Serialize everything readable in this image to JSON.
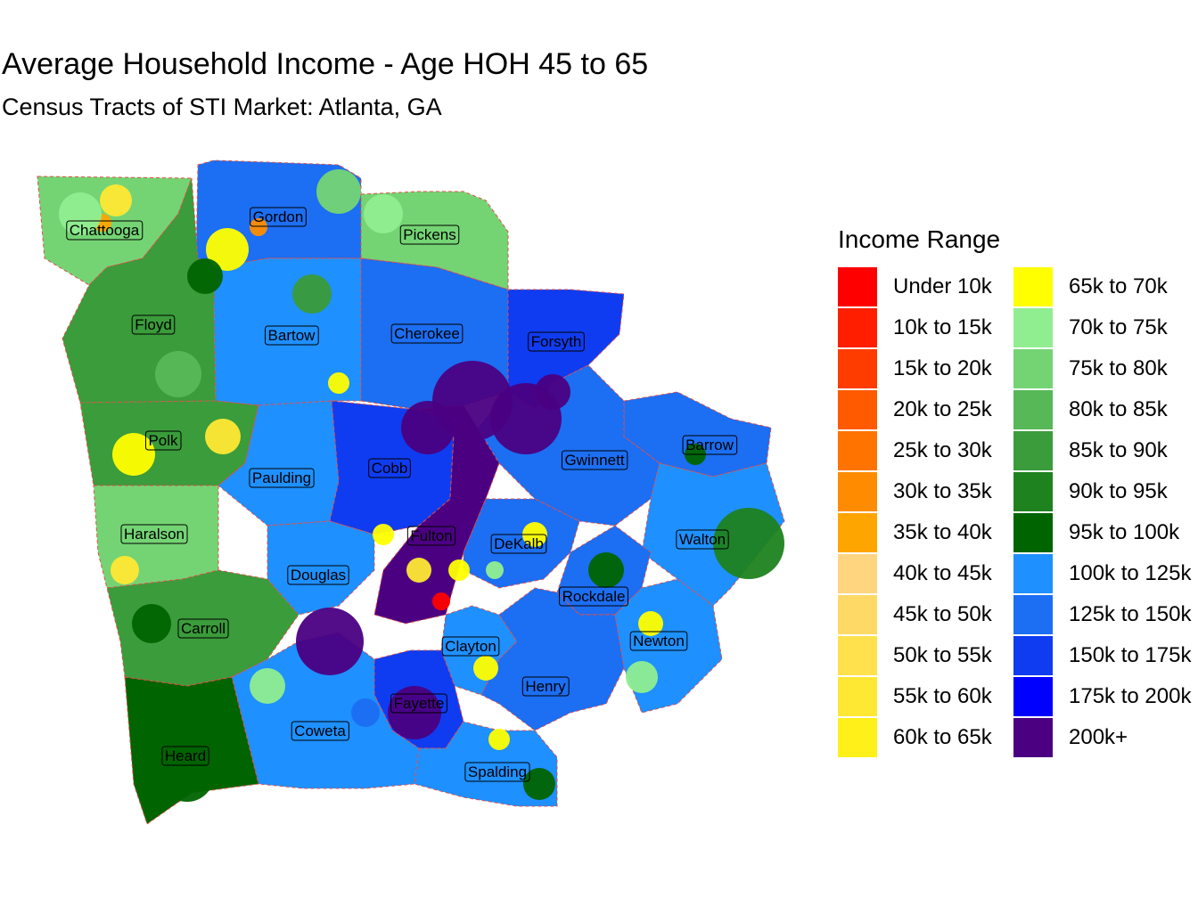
{
  "title": "Average Household Income - Age HOH 45 to 65",
  "subtitle": "Census Tracts of STI Market: Atlanta, GA",
  "legend": {
    "title": "Income Range",
    "items": [
      {
        "label": "Under 10k",
        "color": "#FF0000"
      },
      {
        "label": "10k to 15k",
        "color": "#FF1E00"
      },
      {
        "label": "15k to 20k",
        "color": "#FF3C00"
      },
      {
        "label": "20k to 25k",
        "color": "#FF5A00"
      },
      {
        "label": "25k to 30k",
        "color": "#FF7300"
      },
      {
        "label": "30k to 35k",
        "color": "#FF8C00"
      },
      {
        "label": "35k to 40k",
        "color": "#FFA500"
      },
      {
        "label": "40k to 45k",
        "color": "#FFD580"
      },
      {
        "label": "45k to 50k",
        "color": "#FFD966"
      },
      {
        "label": "50k to 55k",
        "color": "#FFE14D"
      },
      {
        "label": "55k to 60k",
        "color": "#FFE833"
      },
      {
        "label": "60k to 65k",
        "color": "#FFF01A"
      },
      {
        "label": "65k to 70k",
        "color": "#FFFF00"
      },
      {
        "label": "70k to 75k",
        "color": "#90EE90"
      },
      {
        "label": "75k to 80k",
        "color": "#74D474"
      },
      {
        "label": "80k to 85k",
        "color": "#56B856"
      },
      {
        "label": "85k to 90k",
        "color": "#3A9C3A"
      },
      {
        "label": "90k to 95k",
        "color": "#1E821E"
      },
      {
        "label": "95k to 100k",
        "color": "#006400"
      },
      {
        "label": "100k to 125k",
        "color": "#1E90FF"
      },
      {
        "label": "125k to 150k",
        "color": "#1C6EF2"
      },
      {
        "label": "150k to 175k",
        "color": "#0F3CF0"
      },
      {
        "label": "175k to 200k",
        "color": "#0000FF"
      },
      {
        "label": "200k+",
        "color": "#4B0082"
      }
    ]
  },
  "counties": [
    {
      "name": "Chattooga",
      "color": "#74D474"
    },
    {
      "name": "Gordon",
      "color": "#1C6EF2"
    },
    {
      "name": "Pickens",
      "color": "#74D474"
    },
    {
      "name": "Floyd",
      "color": "#3A9C3A"
    },
    {
      "name": "Bartow",
      "color": "#1E90FF"
    },
    {
      "name": "Cherokee",
      "color": "#1C6EF2"
    },
    {
      "name": "Forsyth",
      "color": "#0F3CF0"
    },
    {
      "name": "Barrow",
      "color": "#1C6EF2"
    },
    {
      "name": "Polk",
      "color": "#3A9C3A"
    },
    {
      "name": "Paulding",
      "color": "#1E90FF"
    },
    {
      "name": "Cobb",
      "color": "#0F3CF0"
    },
    {
      "name": "Gwinnett",
      "color": "#1C6EF2"
    },
    {
      "name": "Haralson",
      "color": "#74D474"
    },
    {
      "name": "Fulton",
      "color": "#4B0082"
    },
    {
      "name": "DeKalb",
      "color": "#1C6EF2"
    },
    {
      "name": "Walton",
      "color": "#1E90FF"
    },
    {
      "name": "Douglas",
      "color": "#1E90FF"
    },
    {
      "name": "Rockdale",
      "color": "#1C6EF2"
    },
    {
      "name": "Carroll",
      "color": "#3A9C3A"
    },
    {
      "name": "Clayton",
      "color": "#1E90FF"
    },
    {
      "name": "Newton",
      "color": "#1E90FF"
    },
    {
      "name": "Henry",
      "color": "#1C6EF2"
    },
    {
      "name": "Fayette",
      "color": "#0F3CF0"
    },
    {
      "name": "Coweta",
      "color": "#1E90FF"
    },
    {
      "name": "Heard",
      "color": "#006400"
    },
    {
      "name": "Spalding",
      "color": "#1E90FF"
    }
  ]
}
